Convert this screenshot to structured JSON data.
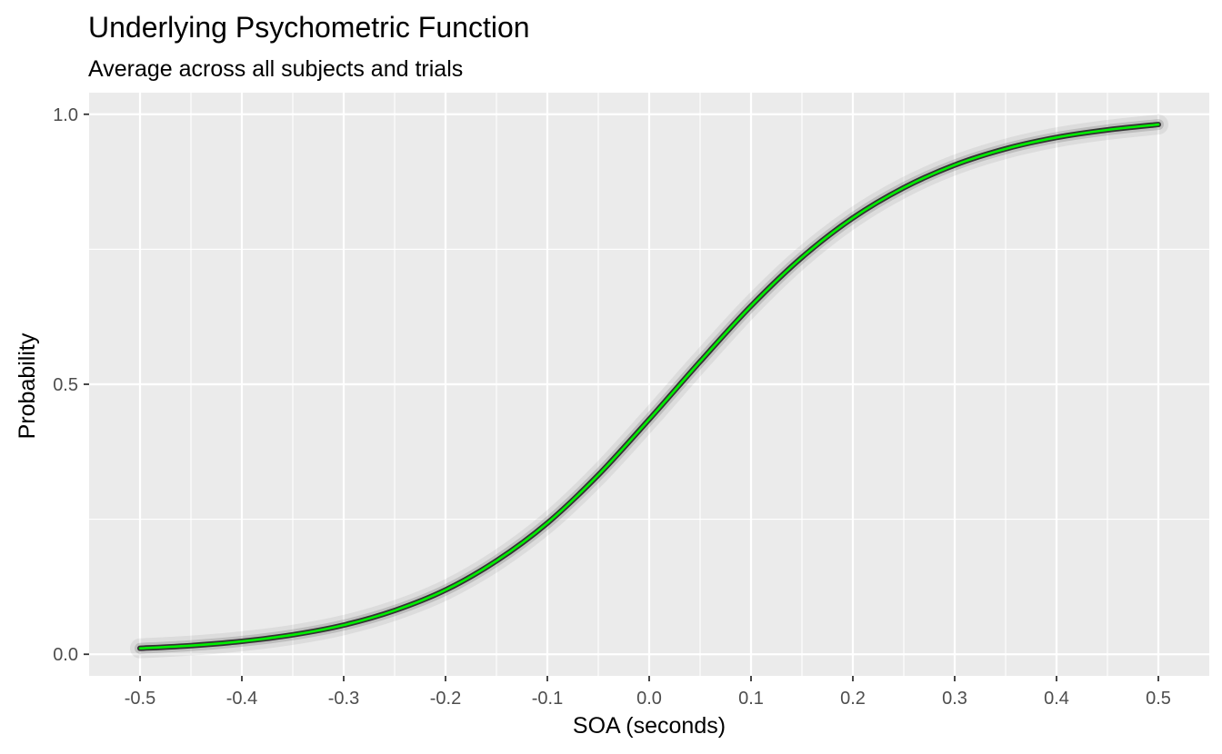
{
  "chart_data": {
    "type": "line",
    "title": "Underlying Psychometric Function",
    "subtitle": "Average across all subjects and trials",
    "xlabel": "SOA (seconds)",
    "ylabel": "Probability",
    "xlim": [
      -0.55,
      0.55
    ],
    "ylim": [
      -0.04,
      1.04
    ],
    "x_ticks": [
      -0.5,
      -0.4,
      -0.3,
      -0.2,
      -0.1,
      0.0,
      0.1,
      0.2,
      0.3,
      0.4,
      0.5
    ],
    "x_tick_labels": [
      "-0.5",
      "-0.4",
      "-0.3",
      "-0.2",
      "-0.1",
      "0.0",
      "0.1",
      "0.2",
      "0.3",
      "0.4",
      "0.5"
    ],
    "y_ticks": [
      0.0,
      0.5,
      1.0
    ],
    "y_tick_labels": [
      "0.0",
      "0.5",
      "1.0"
    ],
    "grid": true,
    "background": "#ebebeb",
    "series": [
      {
        "color": "#00ee00",
        "x": [
          -0.5,
          -0.45,
          -0.4,
          -0.35,
          -0.3,
          -0.25,
          -0.2,
          -0.15,
          -0.1,
          -0.05,
          0.0,
          0.05,
          0.1,
          0.15,
          0.2,
          0.25,
          0.3,
          0.35,
          0.4,
          0.45,
          0.5
        ],
        "y": [
          0.011,
          0.016,
          0.024,
          0.036,
          0.054,
          0.081,
          0.119,
          0.173,
          0.243,
          0.332,
          0.435,
          0.542,
          0.645,
          0.735,
          0.808,
          0.864,
          0.906,
          0.936,
          0.957,
          0.971,
          0.981
        ]
      }
    ],
    "uncertainty_band_color": "#555555"
  }
}
